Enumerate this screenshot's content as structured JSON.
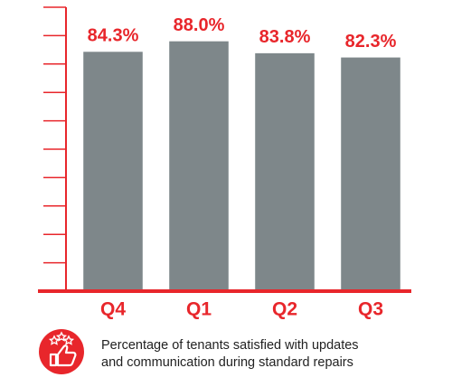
{
  "chart_data": {
    "type": "bar",
    "categories": [
      "Q4",
      "Q1",
      "Q2",
      "Q3"
    ],
    "values": [
      84.3,
      88.0,
      83.8,
      82.3
    ],
    "value_labels": [
      "84.3%",
      "88.0%",
      "83.8%",
      "82.3%"
    ],
    "color": "#7e878a",
    "axis_color": "#e8262b",
    "ylim": [
      0,
      100
    ],
    "yticks": [
      0,
      10,
      20,
      30,
      40,
      50,
      60,
      70,
      80,
      90,
      100
    ],
    "caption": [
      "Percentage of tenants satisfied with updates",
      "and communication during standard repairs"
    ]
  }
}
